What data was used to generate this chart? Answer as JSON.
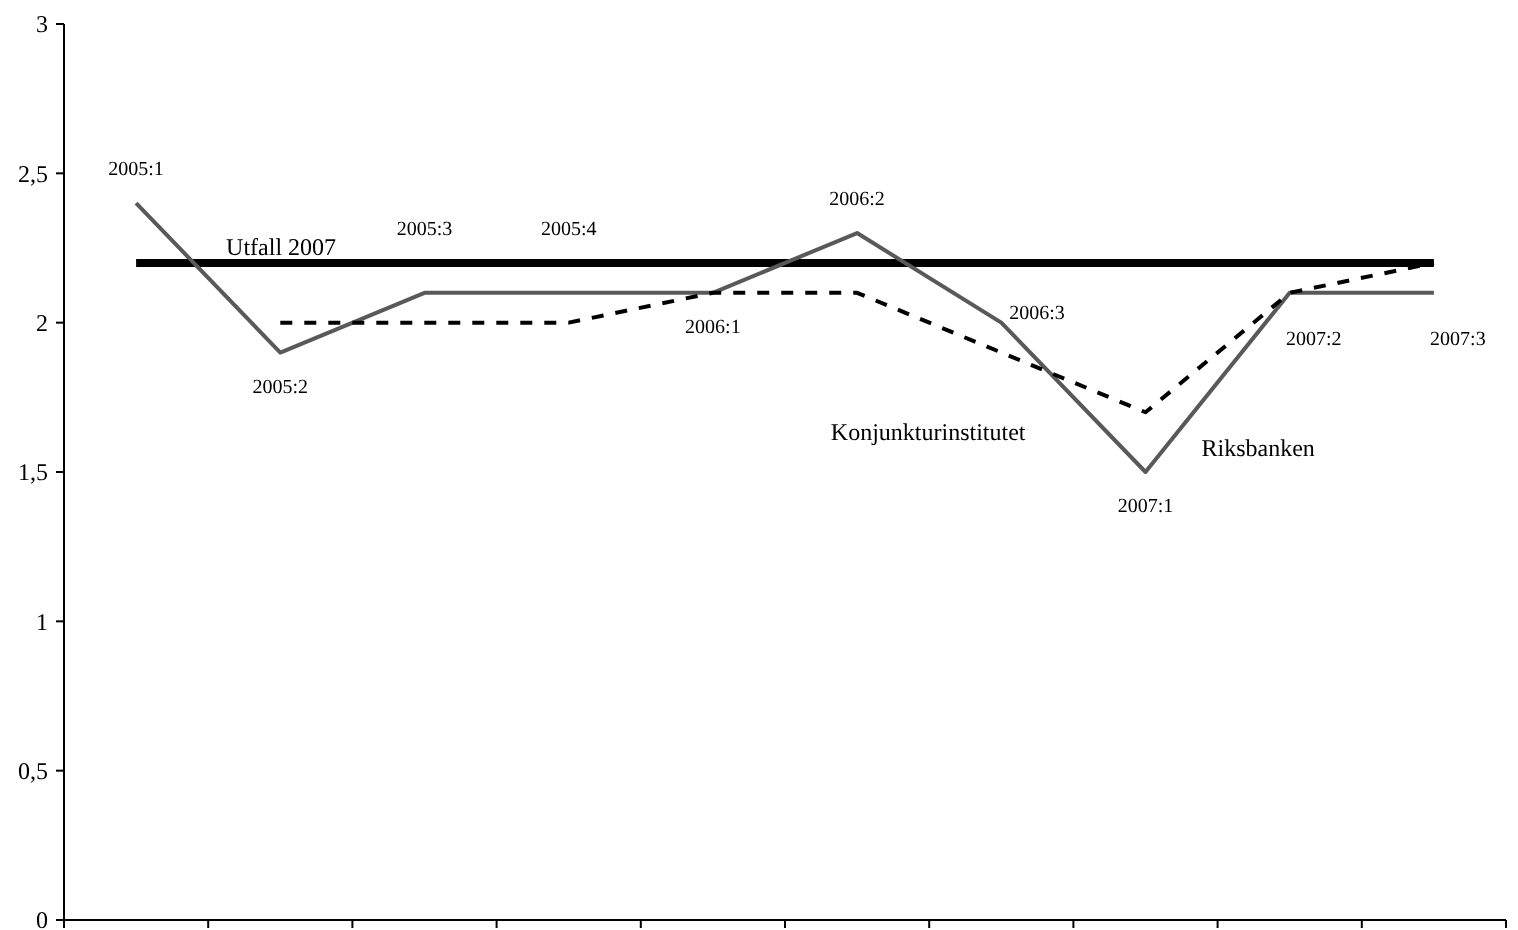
{
  "chart_data": {
    "type": "line",
    "categories": [
      "2005:1",
      "2005:2",
      "2005:3",
      "2005:4",
      "2006:1",
      "2006:2",
      "2006:3",
      "2007:1",
      "2007:2",
      "2007:3"
    ],
    "series": [
      {
        "name": "Riksbanken",
        "color": "#595959",
        "values": [
          2.4,
          1.9,
          2.1,
          2.1,
          2.1,
          2.3,
          2.0,
          1.5,
          2.1,
          2.1
        ]
      },
      {
        "name": "Konjunkturinstitutet",
        "color": "#000000",
        "line_style": "dashed",
        "values": [
          null,
          2.0,
          2.0,
          2.0,
          2.1,
          2.1,
          1.9,
          1.7,
          2.1,
          2.2
        ]
      }
    ],
    "ylim": [
      0,
      3
    ],
    "yticks": [
      0,
      {
        "value": 0.5,
        "label": "0,5"
      },
      1,
      {
        "value": 1.5,
        "label": "1,5"
      },
      2,
      {
        "value": 2.5,
        "label": "2,5"
      },
      3
    ],
    "ref_lines": [
      {
        "axis": "y",
        "value": 2.2,
        "label": "Utfall 2007",
        "color": "#000000"
      }
    ],
    "grid": false,
    "marker": "none",
    "line_style": "solid"
  }
}
